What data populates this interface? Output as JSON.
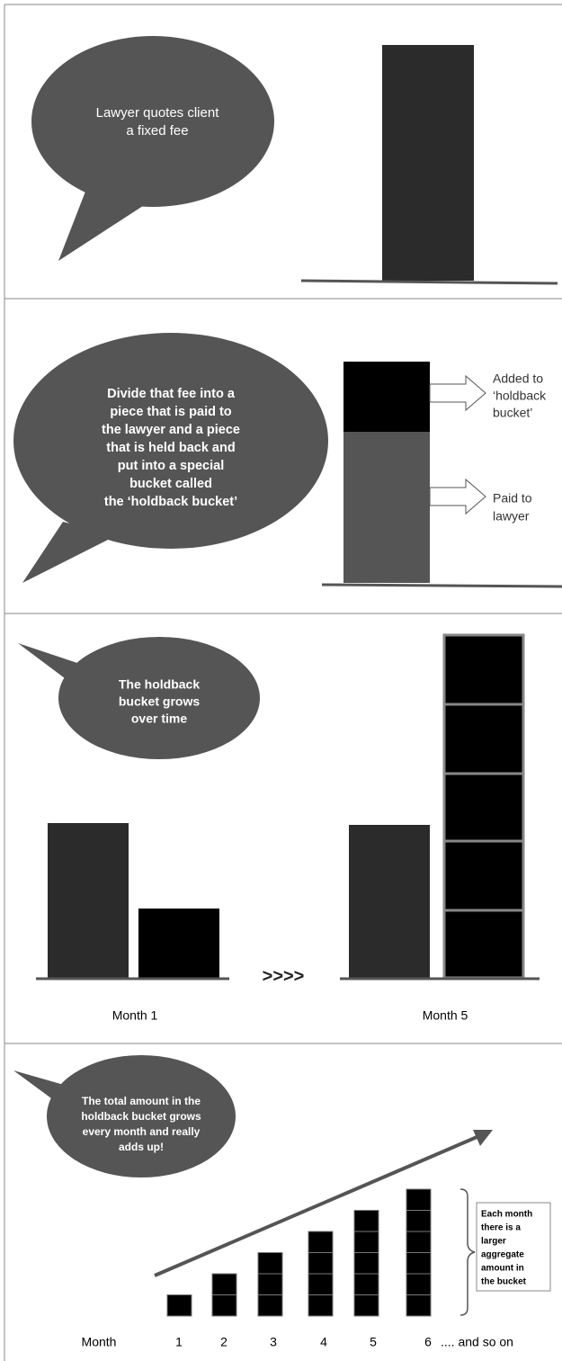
{
  "panels": [
    {
      "bubble": [
        "Lawyer quotes client",
        "a fixed fee"
      ]
    },
    {
      "bubble": [
        "Divide that fee into a",
        "piece that is paid to",
        "the lawyer and a piece",
        "that is held back and",
        "put into a special",
        "bucket called",
        "the ‘holdback bucket’"
      ],
      "top_label": [
        "Added to",
        "‘holdback",
        "bucket’"
      ],
      "bottom_label": [
        "Paid to",
        "lawyer"
      ]
    },
    {
      "bubble": [
        "The holdback",
        "bucket grows",
        "over time"
      ],
      "arrow_text": ">>>>",
      "left_caption": "Month 1",
      "right_caption": "Month 5"
    },
    {
      "bubble": [
        "The total amount in the",
        "holdback bucket grows",
        "every month and really",
        "adds up!"
      ],
      "note": [
        "Each month",
        "there is a",
        "larger",
        "aggregate",
        "amount in",
        "the bucket"
      ],
      "axis_title": "Month",
      "months": [
        "1",
        "2",
        "3",
        "4",
        "5",
        "6"
      ],
      "trailing": ".... and so on"
    }
  ]
}
